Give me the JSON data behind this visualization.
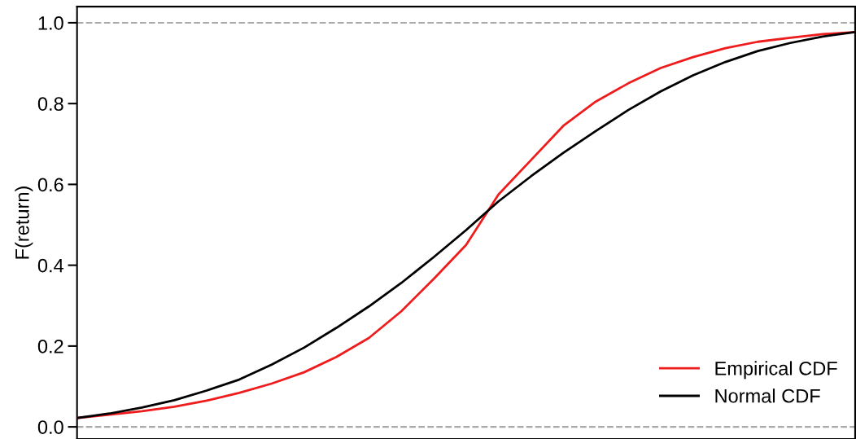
{
  "chart_data": {
    "type": "line",
    "ylabel": "F(return)",
    "categories": [
      null,
      null,
      null,
      null,
      null,
      null,
      null,
      null,
      null,
      null,
      null,
      null,
      null,
      null,
      null,
      null,
      null,
      null,
      null,
      null,
      null,
      null,
      null,
      null,
      null
    ],
    "series": [
      {
        "name": "Empirical CDF",
        "color": "#ee1c1c",
        "values": [
          0.022,
          0.03,
          0.039,
          0.05,
          0.065,
          0.084,
          0.107,
          0.135,
          0.173,
          0.22,
          0.286,
          0.366,
          0.45,
          0.575,
          0.66,
          0.745,
          0.805,
          0.85,
          0.888,
          0.915,
          0.937,
          0.953,
          0.963,
          0.972,
          0.977
        ]
      },
      {
        "name": "Normal CDF",
        "color": "#000000",
        "values": [
          0.022,
          0.033,
          0.048,
          0.066,
          0.09,
          0.117,
          0.154,
          0.196,
          0.245,
          0.298,
          0.356,
          0.42,
          0.487,
          0.558,
          0.62,
          0.678,
          0.732,
          0.784,
          0.83,
          0.87,
          0.903,
          0.93,
          0.95,
          0.966,
          0.977
        ]
      }
    ],
    "ylim": [
      -0.03,
      1.04
    ],
    "yticks": [
      {
        "value": 0,
        "label": "0.0"
      },
      0.2,
      0.4,
      0.6,
      0.8,
      {
        "value": 1,
        "label": "1.0"
      }
    ],
    "ref_lines": [
      {
        "axis": "y",
        "value": 0,
        "color": "#aaaaaa",
        "line_style": "dashed"
      },
      {
        "axis": "y",
        "value": 1,
        "color": "#aaaaaa",
        "line_style": "dashed"
      }
    ],
    "tick_labels": "y",
    "legend": "bottom right",
    "grid": false,
    "line_style": "solid",
    "marker": "none"
  }
}
